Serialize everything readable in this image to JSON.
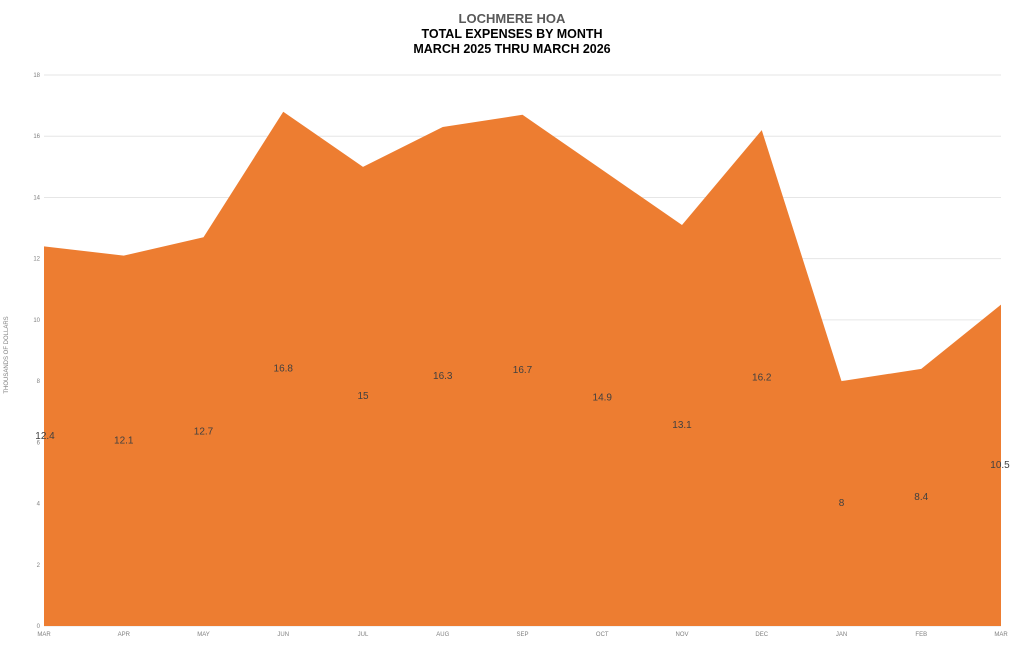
{
  "chart_data": {
    "type": "area",
    "title": "LOCHMERE HOA",
    "subtitle_lines": [
      "TOTAL EXPENSES BY MONTH",
      "MARCH 2025 THRU MARCH 2026"
    ],
    "xlabel": "",
    "ylabel": "THOUSANDS OF DOLLARS",
    "categories": [
      "MAR",
      "APR",
      "MAY",
      "JUN",
      "JUL",
      "AUG",
      "SEP",
      "OCT",
      "NOV",
      "DEC",
      "JAN",
      "FEB",
      "MAR"
    ],
    "values": [
      12.4,
      12.1,
      12.7,
      16.8,
      15,
      16.3,
      16.7,
      14.9,
      13.1,
      16.2,
      8,
      8.4,
      10.5
    ],
    "data_labels": [
      "12.4",
      "12.1",
      "12.7",
      "16.8",
      "15",
      "16.3",
      "16.7",
      "14.9",
      "13.1",
      "16.2",
      "8",
      "8.4",
      "10.5"
    ],
    "yticks": [
      "0",
      "2",
      "4",
      "6",
      "8",
      "10",
      "12",
      "14",
      "16",
      "18"
    ],
    "ylim": [
      0,
      18
    ],
    "grid": true,
    "legend": "none",
    "color": "#ED7D31"
  }
}
